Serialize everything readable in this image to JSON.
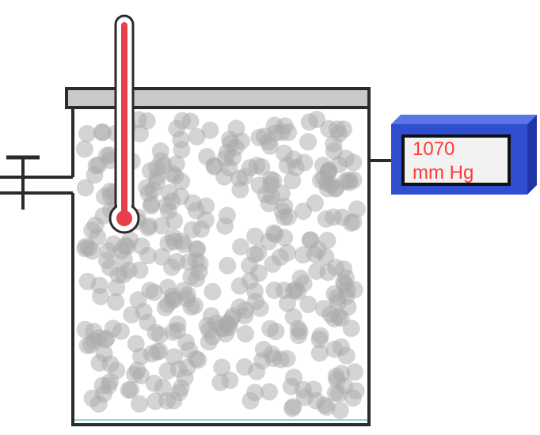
{
  "pressure_gauge": {
    "value": "1070",
    "unit": "mm Hg",
    "text_color": "#ff3b3b",
    "body_color": "#2f4fd0",
    "screen_color": "#f2f2f2"
  },
  "container": {
    "lid_color": "#c9c9c9",
    "wall_color": "#2b2b2b",
    "floor_liquid_color": "#8fd8d8",
    "particle_color": "#a9a9a9",
    "particle_count": 380
  },
  "thermometer": {
    "liquid_color": "#e8404a"
  },
  "valve": {
    "icon": "valve-icon"
  }
}
